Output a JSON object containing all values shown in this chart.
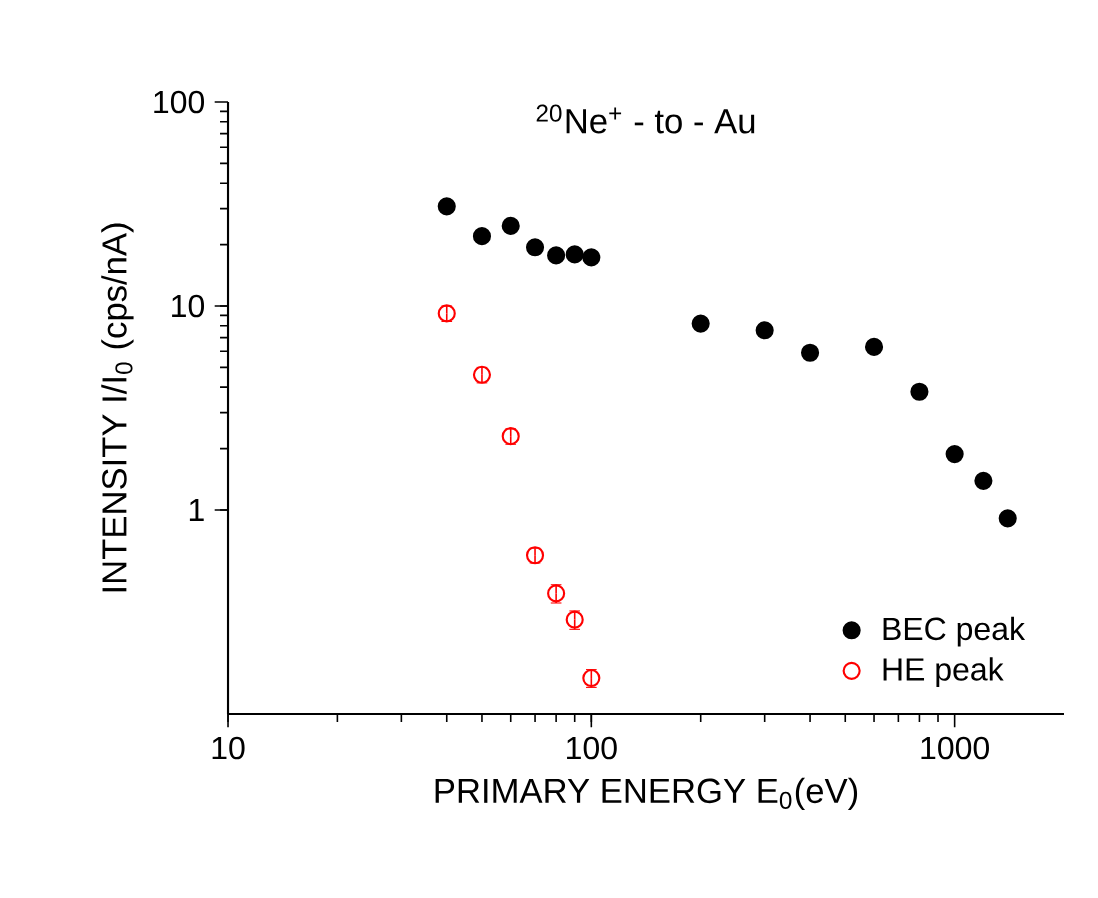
{
  "chart_data": {
    "type": "scatter",
    "title": "$^{20}$Ne$^{+}$ - to - Au",
    "xlabel": "PRIMARY ENERGY E$_{0}$(eV)",
    "ylabel": "INTENSITY  I/I$_{0}$ (cps/nA)",
    "log": "xy",
    "xlim": [
      10,
      2000
    ],
    "ylim": [
      0.1,
      100
    ],
    "xticks": [
      10,
      100,
      1000
    ],
    "yticks": [
      1,
      10,
      100
    ],
    "marker": "circle",
    "grid": false,
    "legend": "bottom right",
    "series": [
      {
        "name": "BEC peak",
        "color": "#000000",
        "x": [
          40,
          50,
          60,
          70,
          80,
          90,
          100,
          200,
          300,
          400,
          600,
          800,
          1000,
          1200,
          1400
        ],
        "values": [
          30.8,
          22.0,
          24.7,
          19.4,
          17.7,
          17.9,
          17.3,
          8.2,
          7.6,
          5.9,
          6.3,
          3.8,
          1.88,
          1.39,
          0.91
        ]
      },
      {
        "name": "HE peak",
        "color": "#ff0000",
        "x": [
          40,
          50,
          60,
          70,
          80,
          90,
          100
        ],
        "values": [
          9.2,
          4.6,
          2.3,
          0.6,
          0.39,
          0.29,
          0.15
        ],
        "errors": [
          0.8,
          0.4,
          0.2,
          0.05,
          0.04,
          0.03,
          0.015
        ]
      }
    ]
  }
}
